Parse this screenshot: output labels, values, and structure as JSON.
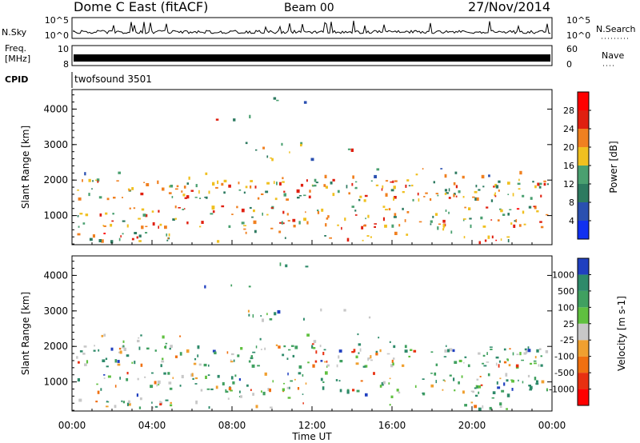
{
  "header": {
    "station": "Dome C East (fitACF)",
    "beam": "Beam 00",
    "date": "27/Nov/2014"
  },
  "noise_panel": {
    "left_label": "N.Sky",
    "left_ticks": [
      "10^5",
      "10^0"
    ],
    "right_label": "N.Search",
    "right_ticks": [
      "10^5",
      "10^0"
    ]
  },
  "freq_panel": {
    "left_label_1": "Freq.",
    "left_label_2": "[MHz]",
    "left_ticks": [
      "10",
      "8"
    ],
    "right_label": "Nave",
    "right_ticks": [
      "60",
      "0"
    ]
  },
  "cpid_panel": {
    "label": "CPID",
    "program": "twofsound 3501"
  },
  "time_axis": {
    "label": "Time UT",
    "ticks": [
      "00:00",
      "04:00",
      "08:00",
      "12:00",
      "16:00",
      "20:00",
      "00:00"
    ]
  },
  "chart_data": [
    {
      "type": "heatmap",
      "name": "power",
      "ylabel": "Slant Range [km]",
      "yticks": [
        "1000",
        "2000",
        "3000",
        "4000"
      ],
      "ylim": [
        180,
        4550
      ],
      "xlim": [
        0,
        24
      ],
      "colorbar": {
        "label": "Power [dB]",
        "ticks": [
          "4",
          "8",
          "12",
          "16",
          "20",
          "24",
          "28"
        ],
        "colors": [
          "#1030f0",
          "#2a50b0",
          "#2d7a60",
          "#4aa070",
          "#f0c020",
          "#f08020",
          "#e02010",
          "#ff0000"
        ]
      }
    },
    {
      "type": "heatmap",
      "name": "velocity",
      "ylabel": "Slant Range [km]",
      "yticks": [
        "1000",
        "2000",
        "3000",
        "4000"
      ],
      "ylim": [
        180,
        4550
      ],
      "xlim": [
        0,
        24
      ],
      "colorbar": {
        "label": "Velocity [m s-1]",
        "ticks": [
          "1000",
          "500",
          "100",
          "25",
          "-25",
          "-100",
          "-500",
          "-1000"
        ],
        "colors": [
          "#2040c0",
          "#2e8a6a",
          "#40a060",
          "#60c040",
          "#c8c8c8",
          "#f0a030",
          "#f07010",
          "#e83010",
          "#ff0000"
        ]
      }
    }
  ]
}
